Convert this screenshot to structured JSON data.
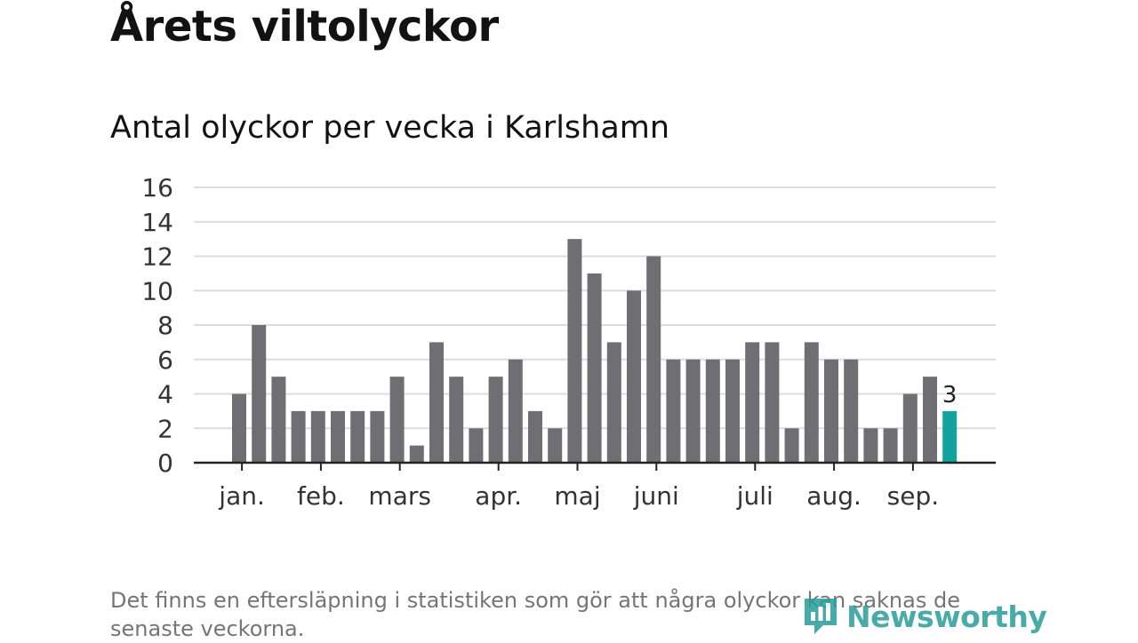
{
  "title": "Årets viltolyckor",
  "subtitle": "Antal olyckor per vecka i Karlshamn",
  "footnote": "Det finns en eftersläpning i statistiken som gör att några olyckor kan saknas de senaste veckorna.",
  "brand": {
    "name": "Newsworthy",
    "color": "#2a9d9a"
  },
  "chart_data": {
    "type": "bar",
    "values": [
      4,
      8,
      5,
      3,
      3,
      3,
      3,
      3,
      5,
      1,
      7,
      5,
      2,
      5,
      6,
      3,
      2,
      13,
      11,
      7,
      10,
      12,
      6,
      6,
      6,
      6,
      7,
      7,
      2,
      7,
      6,
      6,
      2,
      2,
      4,
      5,
      3
    ],
    "highlight_index": 36,
    "highlight_label": "3",
    "ylim": [
      0,
      16
    ],
    "yticks": [
      0,
      2,
      4,
      6,
      8,
      10,
      12,
      14,
      16
    ],
    "month_ticks": [
      {
        "label": "jan.",
        "at": 0.5
      },
      {
        "label": "feb.",
        "at": 4.5
      },
      {
        "label": "mars",
        "at": 8.5
      },
      {
        "label": "apr.",
        "at": 13.5
      },
      {
        "label": "maj",
        "at": 17.5
      },
      {
        "label": "juni",
        "at": 21.5
      },
      {
        "label": "juli",
        "at": 26.5
      },
      {
        "label": "aug.",
        "at": 30.5
      },
      {
        "label": "sep.",
        "at": 34.5
      }
    ],
    "grid": true,
    "colors": {
      "bar": "#6f6e73",
      "highlight": "#13a39b",
      "grid": "#dcdcdc",
      "axis": "#222222"
    }
  }
}
